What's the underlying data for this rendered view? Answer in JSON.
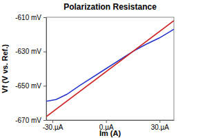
{
  "chart_data": {
    "type": "line",
    "title": "Polarization Resistance",
    "x_label": "Im (A)",
    "y_label": "Vf (V vs. Ref.)",
    "xlim": [
      -33.5,
      38
    ],
    "ylim": [
      -670,
      -610
    ],
    "xticks": [
      {
        "value": -30,
        "label": "-30.µA"
      },
      {
        "value": 0,
        "label": "0.µA"
      },
      {
        "value": 30,
        "label": "30.µA"
      }
    ],
    "yticks": [
      {
        "value": -670,
        "label": "-670 mV"
      },
      {
        "value": -650,
        "label": "-650 mV"
      },
      {
        "value": -630,
        "label": "-630 mV"
      },
      {
        "value": -610,
        "label": "-610 mV"
      }
    ],
    "series": [
      {
        "color": "#2233cc",
        "x": [
          -33.5,
          -28,
          -22,
          -15,
          0,
          15,
          22,
          30,
          38
        ],
        "values": [
          -659,
          -658,
          -655,
          -650,
          -640,
          -630,
          -626,
          -622,
          -617
        ]
      },
      {
        "color": "#cc2222",
        "x": [
          -33.5,
          38
        ],
        "values": [
          -668,
          -612
        ]
      }
    ]
  }
}
